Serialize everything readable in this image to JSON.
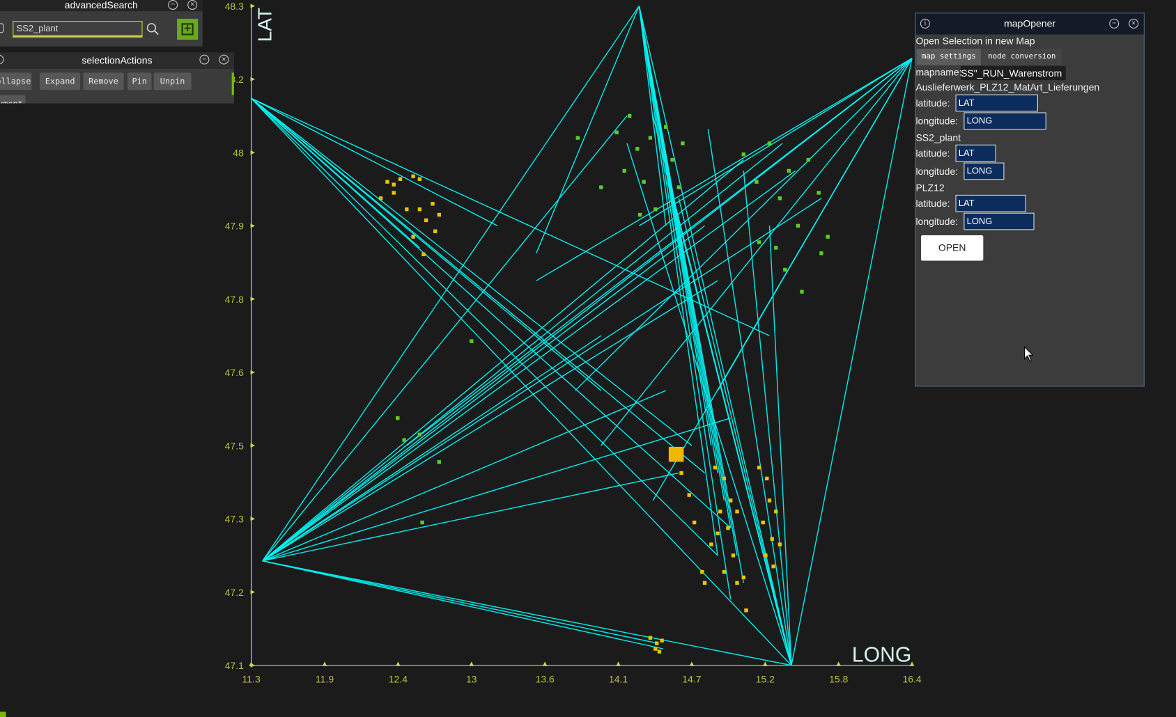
{
  "advancedSearch": {
    "title": "advancedSearch",
    "query": "SS2_plant"
  },
  "selectionActions": {
    "title": "selectionActions",
    "buttons": [
      "ollapse",
      "Expand",
      "Remove",
      "Pin",
      "Unpin",
      "vment"
    ]
  },
  "mapOpener": {
    "title": "mapOpener",
    "heading": "Open Selection in new Map",
    "tabs": [
      "map settings",
      "node conversion"
    ],
    "mapname_label": "mapname:",
    "mapname": "SS\"_RUN_Warenstrom",
    "groups": [
      {
        "name": "Auslieferwerk_PLZ12_MatArt_Lieferungen",
        "latitude_label": "latitude:",
        "latitude": "LAT",
        "longitude_label": "longitude:",
        "longitude": "LONG"
      },
      {
        "name": "SS2_plant",
        "latitude_label": "latitude:",
        "latitude": "LAT",
        "longitude_label": "longitude:",
        "longitude": "LONG"
      },
      {
        "name": "PLZ12",
        "latitude_label": "latitude:",
        "latitude": "LAT",
        "longitude_label": "longitude:",
        "longitude": "LONG"
      }
    ],
    "button": "OPEN"
  },
  "chart_data": {
    "type": "network",
    "x_label": "LONG",
    "y_label": "LAT",
    "xlim": [
      11.3,
      16.4
    ],
    "ylim": [
      47.1,
      48.3
    ],
    "xticks": [
      {
        "value": 11.3,
        "label": "11.3"
      },
      {
        "value": 11.8667,
        "label": "11.9"
      },
      {
        "value": 12.4333,
        "label": "12.4"
      },
      {
        "value": 13.0,
        "label": "13"
      },
      {
        "value": 13.5667,
        "label": "13.6"
      },
      {
        "value": 14.1333,
        "label": "14.1"
      },
      {
        "value": 14.7,
        "label": "14.7"
      },
      {
        "value": 15.2667,
        "label": "15.2"
      },
      {
        "value": 15.8333,
        "label": "15.8"
      },
      {
        "value": 16.4,
        "label": "16.4"
      }
    ],
    "yticks": [
      {
        "value": 47.1,
        "label": "47.1"
      },
      {
        "value": 47.2333,
        "label": "47.2"
      },
      {
        "value": 47.3667,
        "label": "47.3"
      },
      {
        "value": 47.5,
        "label": "47.5"
      },
      {
        "value": 47.6333,
        "label": "47.6"
      },
      {
        "value": 47.7667,
        "label": "47.8"
      },
      {
        "value": 47.9,
        "label": "47.9"
      },
      {
        "value": 48.0333,
        "label": "48"
      },
      {
        "value": 48.1667,
        "label": "48.2"
      },
      {
        "value": 48.3,
        "label": "48.3"
      }
    ],
    "line_color": "#00f2f2",
    "segments": [
      {
        "x": [
          14.294,
          14.9
        ],
        "y": [
          48.3,
          47.45
        ]
      },
      {
        "x": [
          14.294,
          14.95
        ],
        "y": [
          48.3,
          47.4
        ]
      },
      {
        "x": [
          14.294,
          15.0
        ],
        "y": [
          48.3,
          47.35
        ]
      },
      {
        "x": [
          14.294,
          15.05
        ],
        "y": [
          48.3,
          47.3
        ]
      },
      {
        "x": [
          14.294,
          14.85
        ],
        "y": [
          48.3,
          47.5
        ]
      },
      {
        "x": [
          14.294,
          15.1
        ],
        "y": [
          48.3,
          47.25
        ]
      },
      {
        "x": [
          14.294,
          15.0
        ],
        "y": [
          48.3,
          47.22
        ]
      },
      {
        "x": [
          14.294,
          14.9
        ],
        "y": [
          48.3,
          47.3
        ]
      },
      {
        "x": [
          14.294,
          15.469
        ],
        "y": [
          48.3,
          47.1
        ]
      },
      {
        "x": [
          14.294,
          11.387
        ],
        "y": [
          48.3,
          47.29
        ]
      },
      {
        "x": [
          14.294,
          13.5
        ],
        "y": [
          48.3,
          47.85
        ]
      },
      {
        "x": [
          14.294,
          14.5
        ],
        "y": [
          48.3,
          47.9
        ]
      },
      {
        "x": [
          15.469,
          14.826
        ],
        "y": [
          47.1,
          48.076
        ]
      },
      {
        "x": [
          15.469,
          14.5
        ],
        "y": [
          47.1,
          48.0
        ]
      },
      {
        "x": [
          15.469,
          14.4
        ],
        "y": [
          47.1,
          48.1
        ]
      },
      {
        "x": [
          15.469,
          14.2
        ],
        "y": [
          47.1,
          48.05
        ]
      },
      {
        "x": [
          15.469,
          16.4
        ],
        "y": [
          47.1,
          48.205
        ]
      },
      {
        "x": [
          15.469,
          11.387
        ],
        "y": [
          47.1,
          47.29
        ]
      },
      {
        "x": [
          15.469,
          11.3
        ],
        "y": [
          47.1,
          48.132
        ]
      },
      {
        "x": [
          15.469,
          15.3
        ],
        "y": [
          47.1,
          47.9
        ]
      },
      {
        "x": [
          15.469,
          15.1
        ],
        "y": [
          47.1,
          48.0
        ]
      },
      {
        "x": [
          15.469,
          14.6
        ],
        "y": [
          47.1,
          47.95
        ]
      },
      {
        "x": [
          11.387,
          16.4
        ],
        "y": [
          47.29,
          48.205
        ]
      },
      {
        "x": [
          11.387,
          15.5
        ],
        "y": [
          47.29,
          48.0
        ]
      },
      {
        "x": [
          11.387,
          15.7
        ],
        "y": [
          47.29,
          47.95
        ]
      },
      {
        "x": [
          11.387,
          15.4
        ],
        "y": [
          47.29,
          48.05
        ]
      },
      {
        "x": [
          11.387,
          15.1
        ],
        "y": [
          47.29,
          48.02
        ]
      },
      {
        "x": [
          11.387,
          14.8
        ],
        "y": [
          47.29,
          47.9
        ]
      },
      {
        "x": [
          11.387,
          14.5
        ],
        "y": [
          47.29,
          47.6
        ]
      },
      {
        "x": [
          11.387,
          14.6
        ],
        "y": [
          47.29,
          47.45
        ]
      },
      {
        "x": [
          11.387,
          15.0
        ],
        "y": [
          47.29,
          47.55
        ]
      },
      {
        "x": [
          11.387,
          14.0
        ],
        "y": [
          47.29,
          47.7
        ]
      },
      {
        "x": [
          11.387,
          14.44
        ],
        "y": [
          47.29,
          47.14
        ]
      },
      {
        "x": [
          11.387,
          14.48
        ],
        "y": [
          47.29,
          47.13
        ]
      },
      {
        "x": [
          11.387,
          14.2
        ],
        "y": [
          47.29,
          48.1
        ]
      },
      {
        "x": [
          11.387,
          14.9
        ],
        "y": [
          47.29,
          47.8
        ]
      },
      {
        "x": [
          11.3,
          14.7
        ],
        "y": [
          48.132,
          47.5
        ]
      },
      {
        "x": [
          11.3,
          15.0
        ],
        "y": [
          48.132,
          47.35
        ]
      },
      {
        "x": [
          11.3,
          14.9
        ],
        "y": [
          48.132,
          47.3
        ]
      },
      {
        "x": [
          11.3,
          14.8
        ],
        "y": [
          48.132,
          47.45
        ]
      },
      {
        "x": [
          11.3,
          15.3
        ],
        "y": [
          48.132,
          47.7
        ]
      },
      {
        "x": [
          11.3,
          14.0
        ],
        "y": [
          48.132,
          47.6
        ]
      },
      {
        "x": [
          11.3,
          12.6
        ],
        "y": [
          48.132,
          47.86
        ]
      },
      {
        "x": [
          11.3,
          13.2
        ],
        "y": [
          48.132,
          47.9
        ]
      },
      {
        "x": [
          16.4,
          14.0
        ],
        "y": [
          48.205,
          47.5
        ]
      },
      {
        "x": [
          16.4,
          13.8
        ],
        "y": [
          48.205,
          47.6
        ]
      },
      {
        "x": [
          16.4,
          14.4
        ],
        "y": [
          48.205,
          47.4
        ]
      },
      {
        "x": [
          16.4,
          14.294
        ],
        "y": [
          48.205,
          47.9
        ]
      },
      {
        "x": [
          16.4,
          13.5
        ],
        "y": [
          48.205,
          47.8
        ]
      },
      {
        "x": [
          16.4,
          14.9
        ],
        "y": [
          48.205,
          47.6
        ]
      },
      {
        "x": [
          16.4,
          12.5
        ],
        "y": [
          48.205,
          47.5
        ]
      }
    ],
    "series": [
      {
        "name": "SS2_plant",
        "color": "#5ccc2c",
        "x": [
          14.12,
          14.18,
          14.22,
          14.28,
          14.33,
          14.38,
          14.42,
          14.5,
          14.55,
          14.6,
          14.63,
          14.3,
          13.82,
          14.0,
          15.1,
          15.2,
          15.3,
          15.38,
          15.45,
          15.52,
          15.6,
          15.68,
          15.75,
          15.35,
          15.42,
          15.22,
          15.55,
          15.7,
          12.43,
          12.48,
          12.6,
          12.75,
          12.62,
          13.0
        ],
        "y": [
          48.07,
          48.0,
          48.1,
          48.04,
          47.98,
          48.06,
          47.93,
          48.08,
          48.02,
          47.97,
          48.05,
          47.92,
          48.06,
          47.97,
          48.03,
          47.98,
          48.05,
          47.95,
          48.0,
          47.9,
          48.02,
          47.96,
          47.88,
          47.86,
          47.82,
          47.87,
          47.78,
          47.85,
          47.55,
          47.51,
          47.52,
          47.47,
          47.36,
          47.69
        ]
      },
      {
        "name": "PLZ12",
        "color": "#e8c400",
        "x": [
          12.35,
          12.4,
          12.45,
          12.55,
          12.6,
          12.4,
          12.5,
          12.6,
          12.7,
          12.75,
          12.65,
          12.72,
          12.55,
          12.3,
          12.63,
          14.88,
          14.95,
          14.92,
          15.0,
          14.98,
          15.05,
          14.9,
          15.02,
          14.95,
          15.05,
          15.1,
          14.85,
          14.8,
          15.22,
          15.28,
          15.3,
          15.25,
          15.35,
          15.32,
          15.38,
          15.27,
          15.33,
          15.12,
          14.78,
          14.72,
          14.68,
          14.62,
          14.38,
          14.43,
          14.47,
          14.42,
          14.45
        ],
        "y": [
          47.98,
          47.975,
          47.985,
          47.99,
          47.985,
          47.96,
          47.93,
          47.93,
          47.94,
          47.92,
          47.91,
          47.89,
          47.88,
          47.95,
          47.848,
          47.46,
          47.44,
          47.38,
          47.4,
          47.35,
          47.38,
          47.34,
          47.3,
          47.27,
          47.25,
          47.26,
          47.32,
          47.25,
          47.46,
          47.44,
          47.4,
          47.36,
          47.38,
          47.33,
          47.32,
          47.3,
          47.28,
          47.2,
          47.27,
          47.36,
          47.41,
          47.45,
          47.15,
          47.14,
          47.145,
          47.13,
          47.125
        ]
      },
      {
        "name": "Auslieferwerk_PLZ12_MatArt_Lieferungen",
        "color": "#f0b800",
        "x": [
          14.58
        ],
        "y": [
          47.484
        ]
      }
    ]
  }
}
